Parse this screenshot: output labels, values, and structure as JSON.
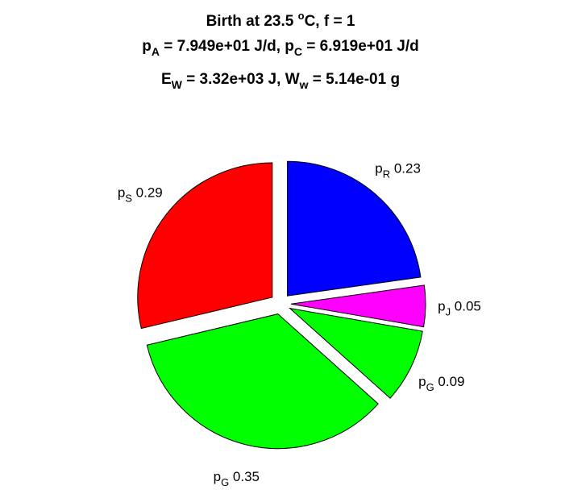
{
  "chart_data": {
    "type": "pie",
    "title": {
      "line1": {
        "pre": "Birth at 23.5 ",
        "sup": "o",
        "post": "C, f = 1"
      },
      "line2": {
        "a_base": "p",
        "a_sub": "A",
        "a_val": " = 7.949e+01 J/d, ",
        "c_base": "p",
        "c_sub": "C",
        "c_val": " = 6.919e+01 J/d"
      },
      "line3": {
        "e_base": "E",
        "e_sub": "W",
        "e_val": " = 3.32e+03 J, ",
        "w_base": "W",
        "w_sub": "w",
        "w_val": " = 5.14e-01 g"
      }
    },
    "slices": [
      {
        "base": "p",
        "sub": "R",
        "value_text": "0.23",
        "value": 0.23,
        "color": "#0000ff"
      },
      {
        "base": "p",
        "sub": "J",
        "value_text": "0.05",
        "value": 0.05,
        "color": "#ff00ff"
      },
      {
        "base": "p",
        "sub": "G",
        "value_text": "0.09",
        "value": 0.09,
        "color": "#00ff00"
      },
      {
        "base": "p",
        "sub": "G",
        "value_text": "0.35",
        "value": 0.35,
        "color": "#00ff00"
      },
      {
        "base": "p",
        "sub": "S",
        "value_text": "0.29",
        "value": 0.29,
        "color": "#ff0000"
      }
    ],
    "exploded": true,
    "direction": "clockwise",
    "start": "top"
  }
}
